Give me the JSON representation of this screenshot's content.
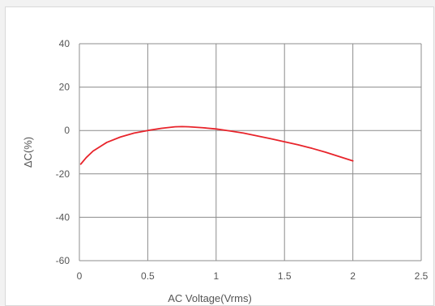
{
  "chart_data": {
    "type": "line",
    "xlabel": "AC Voltage(Vrms)",
    "ylabel": "ΔC(%)",
    "xlim": [
      0,
      2.5
    ],
    "ylim": [
      -60,
      40
    ],
    "x_ticks": [
      0,
      0.5,
      1,
      1.5,
      2,
      2.5
    ],
    "x_tick_labels": [
      "0",
      "0.5",
      "1",
      "1.5",
      "2",
      "2.5"
    ],
    "y_ticks": [
      40,
      20,
      0,
      -20,
      -40,
      -60
    ],
    "y_tick_labels": [
      "40",
      "20",
      "0",
      "-20",
      "-40",
      "-60"
    ],
    "grid": true,
    "series": [
      {
        "color": "#e8242b",
        "x": [
          0.01,
          0.05,
          0.1,
          0.2,
          0.3,
          0.4,
          0.5,
          0.6,
          0.7,
          0.75,
          0.8,
          0.9,
          1.0,
          1.1,
          1.2,
          1.3,
          1.4,
          1.5,
          1.6,
          1.7,
          1.8,
          1.9,
          2.0
        ],
        "y": [
          -15.5,
          -12.5,
          -9.5,
          -5.5,
          -3.0,
          -1.2,
          0.0,
          1.0,
          1.7,
          1.8,
          1.7,
          1.3,
          0.7,
          -0.2,
          -1.2,
          -2.5,
          -3.8,
          -5.2,
          -6.6,
          -8.2,
          -10.0,
          -12.0,
          -14.0
        ]
      }
    ]
  }
}
